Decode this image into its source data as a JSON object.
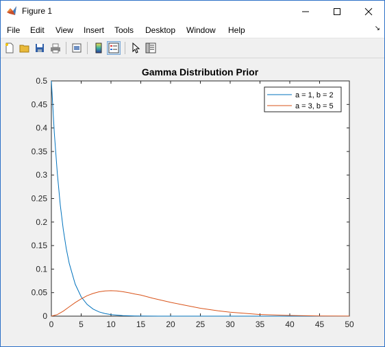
{
  "window": {
    "title": "Figure 1"
  },
  "menu": {
    "items": [
      "File",
      "Edit",
      "View",
      "Insert",
      "Tools",
      "Desktop",
      "Window",
      "Help"
    ]
  },
  "toolbar": {
    "icons": [
      "new-figure-icon",
      "open-file-icon",
      "save-icon",
      "print-icon",
      "print-preview-icon",
      "colorbar-icon",
      "legend-icon",
      "pointer-icon",
      "property-editor-icon"
    ]
  },
  "chart_data": {
    "type": "line",
    "title": "Gamma Distribution Prior",
    "xlabel": "",
    "ylabel": "",
    "xlim": [
      0,
      50
    ],
    "ylim": [
      0,
      0.5
    ],
    "xticks": [
      "0",
      "5",
      "10",
      "15",
      "20",
      "25",
      "30",
      "35",
      "40",
      "45",
      "50"
    ],
    "yticks": [
      "0",
      "0.05",
      "0.1",
      "0.15",
      "0.2",
      "0.25",
      "0.3",
      "0.35",
      "0.4",
      "0.45",
      "0.5"
    ],
    "grid": false,
    "legend_position": "top-right",
    "series": [
      {
        "name": "a = 1, b = 2",
        "color": "#0072bd",
        "x": [
          0,
          0.5,
          1,
          1.5,
          2,
          2.5,
          3,
          4,
          5,
          6,
          7,
          8,
          9,
          10,
          12,
          14,
          16,
          18,
          20,
          25,
          30,
          35,
          40,
          45,
          50
        ],
        "y": [
          0.5,
          0.389,
          0.303,
          0.236,
          0.184,
          0.143,
          0.112,
          0.068,
          0.041,
          0.025,
          0.015,
          0.009,
          0.0056,
          0.0034,
          0.0012,
          0.00046,
          0.00017,
          6e-05,
          2e-05,
          0,
          0,
          0,
          0,
          0,
          0
        ]
      },
      {
        "name": "a = 3, b = 5",
        "color": "#d95319",
        "x": [
          0,
          1,
          2,
          3,
          4,
          5,
          6,
          7,
          8,
          9,
          10,
          11,
          12,
          13,
          14,
          15,
          17,
          20,
          22,
          25,
          28,
          30,
          35,
          40,
          45,
          50
        ],
        "y": [
          0,
          0.0033,
          0.0107,
          0.0198,
          0.0288,
          0.0368,
          0.0434,
          0.0483,
          0.0517,
          0.0536,
          0.0541,
          0.0535,
          0.0519,
          0.0497,
          0.0469,
          0.0448,
          0.038,
          0.0293,
          0.0242,
          0.0168,
          0.0112,
          0.0083,
          0.0035,
          0.0014,
          0.0005,
          0.0002
        ]
      }
    ]
  }
}
